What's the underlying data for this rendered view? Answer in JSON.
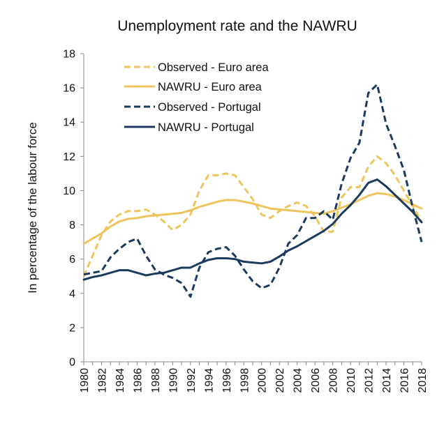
{
  "chart_data": {
    "type": "line",
    "title": "Unemployment rate and the NAWRU",
    "xlabel": "",
    "ylabel": "In percentage of the labour force",
    "xlim": [
      1980,
      2018
    ],
    "ylim": [
      0,
      18
    ],
    "yticks": [
      0,
      2,
      4,
      6,
      8,
      10,
      12,
      14,
      16,
      18
    ],
    "xticks": [
      1980,
      1982,
      1984,
      1986,
      1988,
      1990,
      1992,
      1994,
      1996,
      1998,
      2000,
      2002,
      2004,
      2006,
      2008,
      2010,
      2012,
      2014,
      2016,
      2018
    ],
    "grid": false,
    "legend_position": "top-left",
    "x": [
      1980,
      1981,
      1982,
      1983,
      1984,
      1985,
      1986,
      1987,
      1988,
      1989,
      1990,
      1991,
      1992,
      1993,
      1994,
      1995,
      1996,
      1997,
      1998,
      1999,
      2000,
      2001,
      2002,
      2003,
      2004,
      2005,
      2006,
      2007,
      2008,
      2009,
      2010,
      2011,
      2012,
      2013,
      2014,
      2015,
      2016,
      2017,
      2018
    ],
    "series": [
      {
        "name": "Observed - Euro area",
        "color": "#EDC55C",
        "dash": true,
        "values": [
          5.0,
          6.2,
          7.4,
          8.2,
          8.6,
          8.8,
          8.8,
          8.9,
          8.6,
          8.2,
          7.7,
          8.0,
          8.6,
          10.0,
          10.9,
          10.9,
          11.0,
          10.9,
          10.2,
          9.5,
          8.6,
          8.4,
          8.8,
          9.1,
          9.3,
          9.1,
          8.5,
          7.6,
          7.6,
          9.6,
          10.2,
          10.2,
          11.4,
          12.0,
          11.6,
          10.9,
          10.0,
          9.1,
          8.2
        ]
      },
      {
        "name": "NAWRU - Euro area",
        "color": "#EDC55C",
        "dash": false,
        "values": [
          6.9,
          7.2,
          7.5,
          7.9,
          8.2,
          8.35,
          8.4,
          8.5,
          8.55,
          8.6,
          8.65,
          8.7,
          8.85,
          9.05,
          9.2,
          9.35,
          9.45,
          9.45,
          9.35,
          9.25,
          9.1,
          8.95,
          8.9,
          8.85,
          8.8,
          8.75,
          8.7,
          8.65,
          8.8,
          9.0,
          9.2,
          9.45,
          9.7,
          9.85,
          9.8,
          9.65,
          9.45,
          9.2,
          8.95
        ]
      },
      {
        "name": "Observed - Portugal",
        "color": "#1B3A5E",
        "dash": true,
        "values": [
          5.1,
          5.2,
          5.3,
          6.1,
          6.6,
          7.0,
          7.2,
          6.2,
          5.4,
          5.1,
          4.9,
          4.6,
          3.8,
          5.5,
          6.4,
          6.6,
          6.7,
          6.2,
          5.4,
          4.7,
          4.3,
          4.5,
          5.5,
          6.9,
          7.4,
          8.4,
          8.4,
          8.8,
          8.3,
          10.4,
          11.9,
          12.8,
          15.7,
          16.2,
          13.9,
          12.6,
          11.2,
          9.0,
          7.0
        ]
      },
      {
        "name": "NAWRU - Portugal",
        "color": "#1B3A5E",
        "dash": false,
        "values": [
          4.8,
          4.95,
          5.05,
          5.2,
          5.35,
          5.35,
          5.2,
          5.05,
          5.15,
          5.2,
          5.35,
          5.5,
          5.5,
          5.75,
          5.95,
          6.05,
          6.05,
          6.0,
          5.85,
          5.8,
          5.75,
          5.85,
          6.15,
          6.5,
          6.75,
          7.05,
          7.35,
          7.65,
          8.05,
          8.65,
          9.15,
          9.75,
          10.45,
          10.65,
          10.25,
          9.75,
          9.25,
          8.75,
          8.15
        ]
      }
    ]
  }
}
